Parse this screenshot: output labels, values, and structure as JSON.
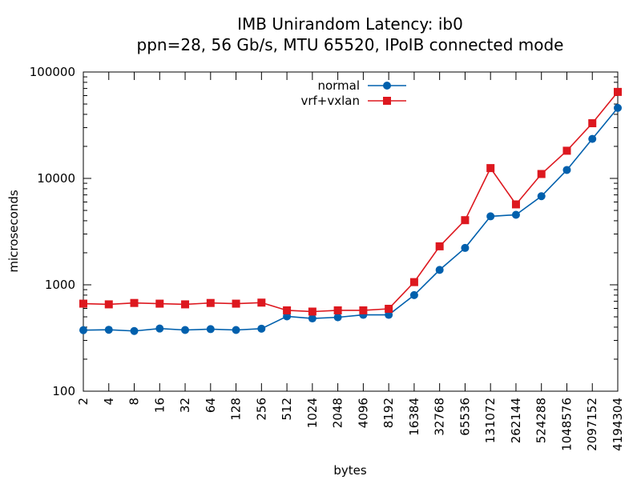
{
  "chart_data": {
    "type": "line",
    "title": "IMB Unirandom Latency: ib0",
    "subtitle": "ppn=28, 56 Gb/s, MTU 65520, IPoIB connected mode",
    "xlabel": "bytes",
    "ylabel": "microseconds",
    "yscale": "log",
    "ylim": [
      100,
      100000
    ],
    "y_ticks": [
      "100",
      "1000",
      "10000",
      "100000"
    ],
    "grid": false,
    "legend_position": "top-center",
    "categories": [
      "2",
      "4",
      "8",
      "16",
      "32",
      "64",
      "128",
      "256",
      "512",
      "1024",
      "2048",
      "4096",
      "8192",
      "16384",
      "32768",
      "65536",
      "131072",
      "262144",
      "524288",
      "1048576",
      "2097152",
      "4194304"
    ],
    "series": [
      {
        "name": "normal",
        "color": "#0060ad",
        "marker": "circle",
        "values": [
          375,
          378,
          368,
          388,
          376,
          383,
          376,
          387,
          505,
          483,
          495,
          522,
          522,
          800,
          1380,
          2220,
          4400,
          4550,
          6800,
          12000,
          23500,
          46000
        ]
      },
      {
        "name": "vrf+vxlan",
        "color": "#dd181f",
        "marker": "square",
        "values": [
          665,
          655,
          675,
          665,
          655,
          675,
          665,
          680,
          575,
          560,
          575,
          575,
          595,
          1060,
          2300,
          4050,
          12500,
          5700,
          11000,
          18200,
          33000,
          65000
        ]
      }
    ]
  }
}
